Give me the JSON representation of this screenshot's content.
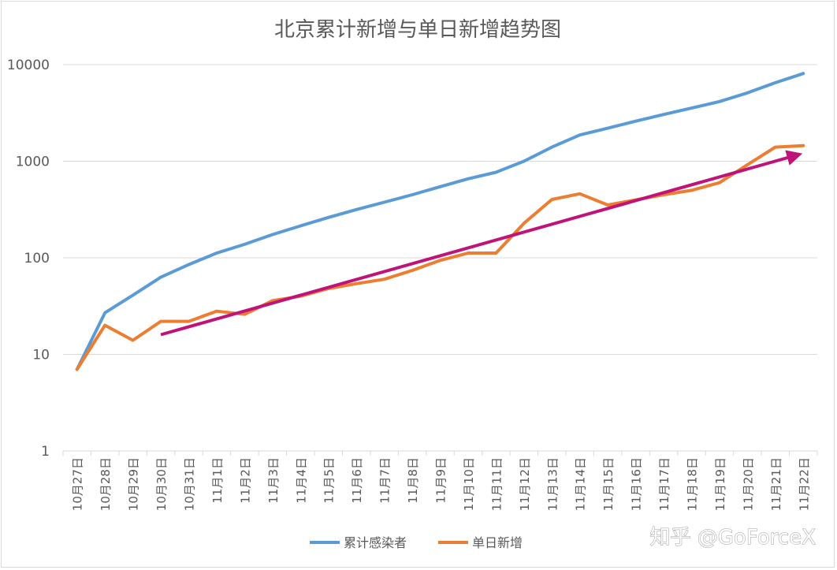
{
  "chart_data": {
    "type": "line",
    "title": "北京累计新增与单日新增趋势图",
    "y_scale": "log",
    "ylim": [
      1,
      10000
    ],
    "y_ticks": [
      "1",
      "10",
      "100",
      "1000",
      "10000"
    ],
    "grid": true,
    "legend_position": "bottom",
    "categories": [
      "10月27日",
      "10月28日",
      "10月29日",
      "10月30日",
      "10月31日",
      "11月1日",
      "11月2日",
      "11月3日",
      "11月4日",
      "11月5日",
      "11月6日",
      "11月7日",
      "11月8日",
      "11月9日",
      "11月10日",
      "11月11日",
      "11月12日",
      "11月13日",
      "11月14日",
      "11月15日",
      "11月16日",
      "11月17日",
      "11月18日",
      "11月19日",
      "11月20日",
      "11月21日",
      "11月22日"
    ],
    "series": [
      {
        "name": "累计感染者",
        "color": "#5b9bd5",
        "values": [
          7,
          27,
          41,
          63,
          85,
          112,
          138,
          174,
          214,
          262,
          316,
          376,
          450,
          545,
          657,
          769,
          1000,
          1400,
          1870,
          2200,
          2600,
          3050,
          3550,
          4150,
          5100,
          6500,
          8100
        ]
      },
      {
        "name": "单日新增",
        "color": "#ed7d31",
        "values": [
          7,
          20,
          14,
          22,
          22,
          28,
          26,
          36,
          40,
          48,
          54,
          60,
          74,
          94,
          112,
          112,
          228,
          402,
          460,
          352,
          398,
          450,
          500,
          600,
          920,
          1400,
          1450
        ]
      }
    ],
    "annotations": [
      {
        "type": "trend-arrow",
        "color": "#c0137a",
        "from": {
          "x": "10月30日",
          "y": 16
        },
        "to": {
          "x": "11月22日",
          "y": 1250
        }
      }
    ]
  },
  "watermark": "知乎 @GoForceX"
}
